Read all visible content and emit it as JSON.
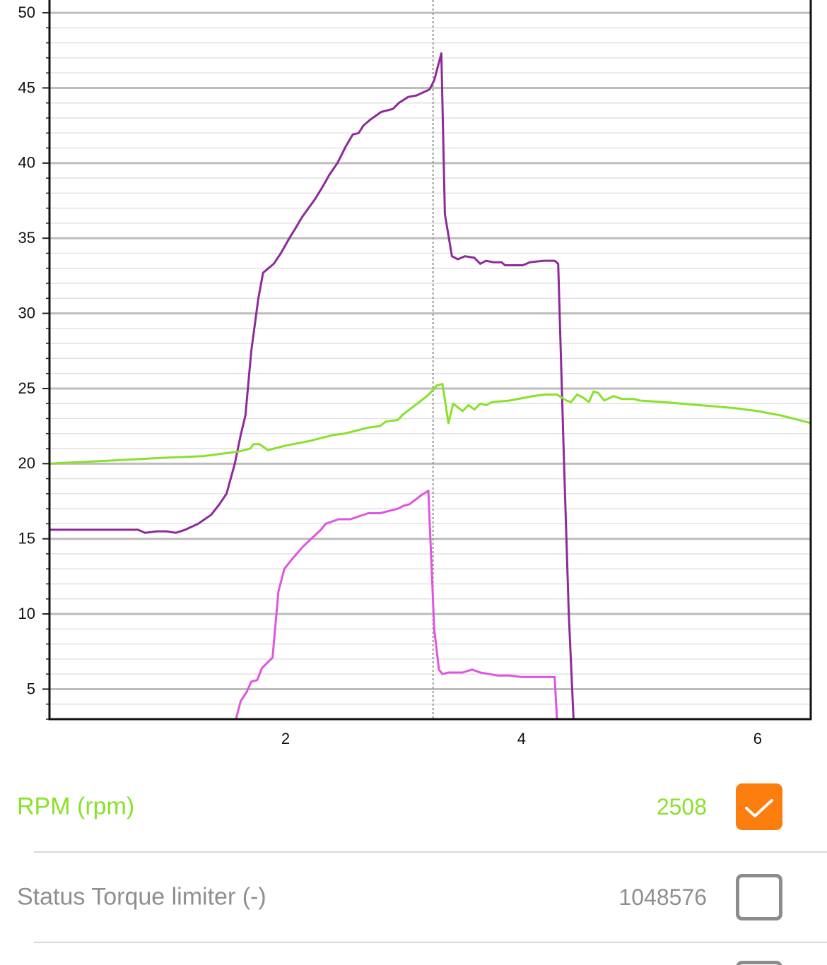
{
  "chart_data": {
    "type": "line",
    "xlim": [
      0,
      6.45
    ],
    "xticks": [
      2,
      4,
      6
    ],
    "ylim": [
      3,
      50.85
    ],
    "yticks": [
      5,
      10,
      15,
      20,
      25,
      30,
      35,
      40,
      45,
      50
    ],
    "grid": true,
    "cursor_x": 3.25,
    "series": [
      {
        "color": "#8e2a9a",
        "x": [
          0,
          0.75,
          0.81,
          0.91,
          0.99,
          1.07,
          1.15,
          1.26,
          1.37,
          1.44,
          1.5,
          1.57,
          1.62,
          1.66,
          1.71,
          1.77,
          1.81,
          1.9,
          1.96,
          2.04,
          2.08,
          2.14,
          2.25,
          2.32,
          2.37,
          2.44,
          2.51,
          2.57,
          2.62,
          2.66,
          2.72,
          2.81,
          2.91,
          2.96,
          3.04,
          3.11,
          3.22,
          3.26,
          3.32,
          3.35,
          3.41,
          3.46,
          3.52,
          3.6,
          3.65,
          3.7,
          3.76,
          3.83,
          3.86,
          4.01,
          4.07,
          4.19,
          4.28,
          4.31,
          4.36,
          4.4,
          4.44
        ],
        "values": [
          15.6,
          15.6,
          15.4,
          15.5,
          15.5,
          15.4,
          15.6,
          16.0,
          16.6,
          17.3,
          18.0,
          20.0,
          21.9,
          23.2,
          27.5,
          31.0,
          32.7,
          33.3,
          34.0,
          35.1,
          35.6,
          36.4,
          37.6,
          38.5,
          39.2,
          40.0,
          41.1,
          41.9,
          42.0,
          42.5,
          42.9,
          43.4,
          43.6,
          44.0,
          44.4,
          44.5,
          44.9,
          45.5,
          47.3,
          36.6,
          33.8,
          33.6,
          33.8,
          33.7,
          33.3,
          33.5,
          33.4,
          33.4,
          33.2,
          33.2,
          33.4,
          33.5,
          33.5,
          33.3,
          20.0,
          10.0,
          3.0
        ]
      },
      {
        "color": "#88e22a",
        "x": [
          0,
          0.5,
          1.0,
          1.3,
          1.6,
          1.7,
          1.73,
          1.78,
          1.85,
          2.0,
          2.2,
          2.4,
          2.5,
          2.7,
          2.8,
          2.85,
          2.95,
          3.0,
          3.1,
          3.2,
          3.25,
          3.28,
          3.33,
          3.38,
          3.42,
          3.5,
          3.55,
          3.6,
          3.65,
          3.7,
          3.75,
          3.9,
          4.1,
          4.2,
          4.3,
          4.38,
          4.42,
          4.47,
          4.52,
          4.57,
          4.61,
          4.65,
          4.7,
          4.78,
          4.85,
          4.95,
          5.0,
          5.2,
          5.5,
          5.8,
          6.0,
          6.2,
          6.45
        ],
        "values": [
          20.0,
          20.2,
          20.4,
          20.5,
          20.8,
          21.0,
          21.3,
          21.3,
          20.9,
          21.2,
          21.5,
          21.9,
          22.0,
          22.4,
          22.5,
          22.8,
          22.9,
          23.3,
          23.9,
          24.5,
          24.9,
          25.2,
          25.3,
          22.7,
          24.0,
          23.5,
          23.9,
          23.6,
          24.0,
          23.9,
          24.1,
          24.2,
          24.5,
          24.6,
          24.6,
          24.2,
          24.1,
          24.6,
          24.4,
          24.1,
          24.8,
          24.7,
          24.2,
          24.5,
          24.3,
          24.3,
          24.2,
          24.1,
          23.9,
          23.7,
          23.5,
          23.2,
          22.7
        ]
      },
      {
        "color": "#e055e0",
        "x": [
          1.58,
          1.62,
          1.67,
          1.71,
          1.76,
          1.8,
          1.89,
          1.94,
          1.99,
          2.05,
          2.15,
          2.3,
          2.34,
          2.45,
          2.55,
          2.7,
          2.8,
          2.95,
          3.0,
          3.05,
          3.15,
          3.21,
          3.26,
          3.3,
          3.33,
          3.38,
          3.5,
          3.58,
          3.65,
          3.8,
          3.9,
          4.0,
          4.28,
          4.3
        ],
        "values": [
          3.0,
          4.2,
          4.8,
          5.5,
          5.6,
          6.4,
          7.1,
          11.5,
          13.0,
          13.6,
          14.5,
          15.6,
          16.0,
          16.3,
          16.3,
          16.7,
          16.7,
          17.0,
          17.2,
          17.3,
          17.9,
          18.2,
          9.0,
          6.3,
          6.0,
          6.1,
          6.1,
          6.3,
          6.1,
          5.9,
          5.9,
          5.8,
          5.8,
          3.0
        ]
      }
    ]
  },
  "rows": [
    {
      "label": "RPM (rpm)",
      "value": "2508",
      "checked": true,
      "color": "#88e22a"
    },
    {
      "label": "Status Torque limiter (-)",
      "value": "1048576",
      "checked": false,
      "color": "#8f8f8f"
    }
  ]
}
